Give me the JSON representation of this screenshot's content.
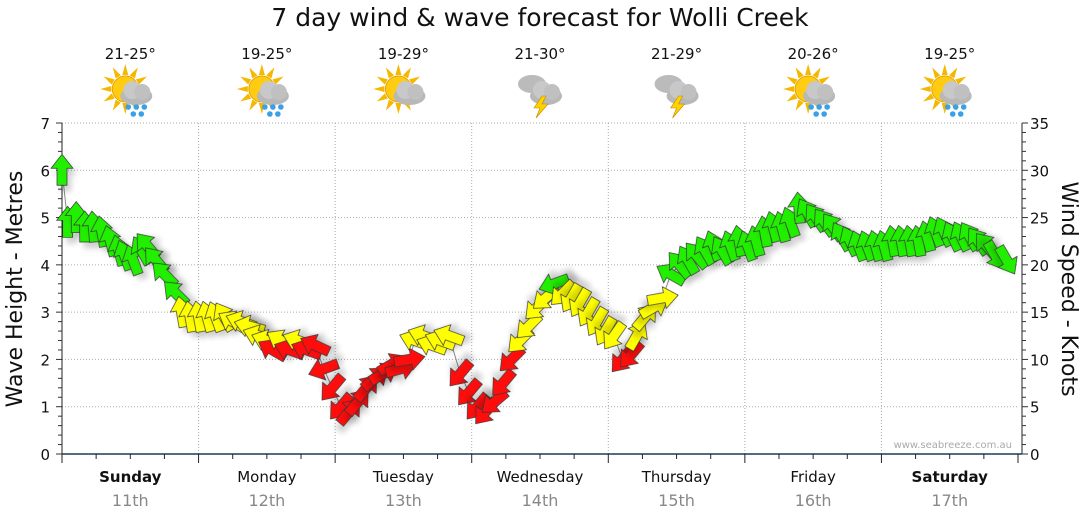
{
  "chart_data": {
    "type": "scatter",
    "title": "7 day wind & wave forecast for Wolli Creek",
    "ylabel": "Wave Height - Metres",
    "y2label": "Wind Speed - Knots",
    "ylim": [
      0,
      7
    ],
    "y2lim": [
      0,
      35
    ],
    "yticks": [
      "0",
      "1",
      "2",
      "3",
      "4",
      "5",
      "6",
      "7"
    ],
    "y2ticks": [
      "0",
      "5",
      "10",
      "15",
      "20",
      "25",
      "30",
      "35"
    ],
    "grid": true,
    "watermark": "www.seabreeze.com.au",
    "days": [
      {
        "day": "Sunday",
        "date": "11th",
        "temp": "21-25°",
        "icon": "sun-cloud-rain-icon",
        "bold": true
      },
      {
        "day": "Monday",
        "date": "12th",
        "temp": "19-25°",
        "icon": "sun-cloud-rain-icon",
        "bold": false
      },
      {
        "day": "Tuesday",
        "date": "13th",
        "temp": "19-29°",
        "icon": "sun-cloud-icon",
        "bold": false
      },
      {
        "day": "Wednesday",
        "date": "14th",
        "temp": "21-30°",
        "icon": "thunderstorm-icon",
        "bold": false
      },
      {
        "day": "Thursday",
        "date": "15th",
        "temp": "21-29°",
        "icon": "thunderstorm-icon",
        "bold": false
      },
      {
        "day": "Friday",
        "date": "16th",
        "temp": "20-26°",
        "icon": "sun-cloud-rain-icon",
        "bold": false
      },
      {
        "day": "Saturday",
        "date": "17th",
        "temp": "19-25°",
        "icon": "sun-cloud-rain-icon",
        "bold": true
      }
    ],
    "colors": {
      "g": "#22ee00",
      "y": "#ffff00",
      "r": "#ff1111"
    },
    "wind_series_fields": [
      "hour",
      "knots",
      "direction_deg",
      "color"
    ],
    "wind": [
      [
        0,
        30,
        0,
        "g"
      ],
      [
        1,
        24.5,
        0,
        "g"
      ],
      [
        2.5,
        25,
        0,
        "g"
      ],
      [
        4,
        24,
        0,
        "g"
      ],
      [
        5.5,
        24,
        355,
        "g"
      ],
      [
        7,
        23.5,
        350,
        "g"
      ],
      [
        8.5,
        22.5,
        345,
        "g"
      ],
      [
        10,
        21.5,
        345,
        "g"
      ],
      [
        11,
        21,
        340,
        "g"
      ],
      [
        12.5,
        20.5,
        340,
        "g"
      ],
      [
        14,
        21.5,
        330,
        "g"
      ],
      [
        15,
        22,
        320,
        "g"
      ],
      [
        16.5,
        20.5,
        320,
        "g"
      ],
      [
        18,
        19,
        315,
        "g"
      ],
      [
        20,
        17,
        315,
        "g"
      ],
      [
        21,
        15,
        350,
        "y"
      ],
      [
        22.5,
        14.5,
        350,
        "y"
      ],
      [
        24,
        14.5,
        350,
        "y"
      ],
      [
        25.5,
        14.5,
        345,
        "y"
      ],
      [
        27,
        14.5,
        340,
        "y"
      ],
      [
        28.5,
        14.5,
        330,
        "y"
      ],
      [
        30,
        14,
        300,
        "y"
      ],
      [
        31.5,
        14,
        290,
        "y"
      ],
      [
        33,
        13.5,
        285,
        "y"
      ],
      [
        34.5,
        12.5,
        290,
        "y"
      ],
      [
        36,
        12,
        290,
        "y"
      ],
      [
        37,
        11,
        300,
        "r"
      ],
      [
        38.5,
        12,
        300,
        "y"
      ],
      [
        40,
        11,
        290,
        "r"
      ],
      [
        41.5,
        12,
        290,
        "y"
      ],
      [
        43,
        11,
        290,
        "r"
      ],
      [
        44.5,
        11.5,
        295,
        "r"
      ],
      [
        46,
        9,
        250,
        "r"
      ],
      [
        47.5,
        7,
        220,
        "r"
      ],
      [
        49,
        5,
        220,
        "r"
      ],
      [
        50.5,
        4.5,
        40,
        "r"
      ],
      [
        52,
        5.5,
        40,
        "r"
      ],
      [
        53.5,
        7,
        40,
        "r"
      ],
      [
        55,
        8,
        50,
        "r"
      ],
      [
        56.5,
        8.5,
        60,
        "r"
      ],
      [
        58,
        9.5,
        60,
        "r"
      ],
      [
        59.5,
        9,
        75,
        "r"
      ],
      [
        61,
        10,
        80,
        "r"
      ],
      [
        62,
        12,
        290,
        "y"
      ],
      [
        63.5,
        12.5,
        290,
        "y"
      ],
      [
        65,
        11.5,
        290,
        "y"
      ],
      [
        66.5,
        12,
        290,
        "y"
      ],
      [
        68,
        12.5,
        290,
        "y"
      ],
      [
        70,
        8.5,
        220,
        "r"
      ],
      [
        71.5,
        6.5,
        220,
        "r"
      ],
      [
        73,
        5,
        220,
        "r"
      ],
      [
        74.5,
        4.5,
        220,
        "r"
      ],
      [
        76,
        5.5,
        230,
        "r"
      ],
      [
        77.5,
        7.5,
        220,
        "r"
      ],
      [
        79,
        10,
        225,
        "r"
      ],
      [
        80.5,
        12,
        225,
        "y"
      ],
      [
        82,
        13.5,
        225,
        "y"
      ],
      [
        83.5,
        15.5,
        225,
        "y"
      ],
      [
        85,
        16.5,
        230,
        "y"
      ],
      [
        86.5,
        18,
        250,
        "g"
      ],
      [
        88,
        17,
        225,
        "y"
      ],
      [
        89.5,
        16.5,
        210,
        "y"
      ],
      [
        91,
        16,
        210,
        "y"
      ],
      [
        92.5,
        15,
        210,
        "y"
      ],
      [
        94,
        14,
        210,
        "y"
      ],
      [
        95.5,
        13,
        210,
        "y"
      ],
      [
        97,
        12.5,
        215,
        "y"
      ],
      [
        98.5,
        10,
        220,
        "r"
      ],
      [
        100,
        10.5,
        220,
        "r"
      ],
      [
        101,
        12.5,
        30,
        "y"
      ],
      [
        102.5,
        14.5,
        40,
        "y"
      ],
      [
        104,
        15.5,
        60,
        "y"
      ],
      [
        105.5,
        16.5,
        80,
        "y"
      ],
      [
        107,
        19,
        300,
        "g"
      ],
      [
        108.5,
        20,
        320,
        "g"
      ],
      [
        110,
        20.5,
        330,
        "g"
      ],
      [
        111.5,
        21,
        320,
        "g"
      ],
      [
        113,
        21.5,
        330,
        "g"
      ],
      [
        114.5,
        22,
        340,
        "g"
      ],
      [
        116,
        21.5,
        330,
        "g"
      ],
      [
        117.5,
        22,
        340,
        "g"
      ],
      [
        119,
        22.5,
        350,
        "g"
      ],
      [
        120.5,
        22,
        340,
        "g"
      ],
      [
        122,
        22.5,
        345,
        "g"
      ],
      [
        123.5,
        23.5,
        350,
        "g"
      ],
      [
        125,
        24,
        345,
        "g"
      ],
      [
        126.5,
        24,
        345,
        "g"
      ],
      [
        128,
        24.5,
        340,
        "g"
      ],
      [
        129.5,
        26,
        355,
        "g"
      ],
      [
        131,
        25.5,
        330,
        "g"
      ],
      [
        132.5,
        25,
        325,
        "g"
      ],
      [
        134,
        24.5,
        325,
        "g"
      ],
      [
        135.5,
        24,
        325,
        "g"
      ],
      [
        137,
        23,
        330,
        "g"
      ],
      [
        138.5,
        22.5,
        335,
        "g"
      ],
      [
        140,
        22,
        340,
        "g"
      ],
      [
        141.5,
        22,
        340,
        "g"
      ],
      [
        143,
        22,
        345,
        "g"
      ],
      [
        144.5,
        22,
        345,
        "g"
      ],
      [
        146,
        22.5,
        350,
        "g"
      ],
      [
        147.5,
        22.5,
        350,
        "g"
      ],
      [
        149,
        22.5,
        350,
        "g"
      ],
      [
        150.5,
        22.5,
        350,
        "g"
      ],
      [
        152,
        23,
        345,
        "g"
      ],
      [
        153.5,
        23.5,
        340,
        "g"
      ],
      [
        155,
        23.5,
        335,
        "g"
      ],
      [
        156.5,
        23,
        335,
        "g"
      ],
      [
        158,
        23,
        335,
        "g"
      ],
      [
        159.5,
        23,
        330,
        "g"
      ],
      [
        161,
        22.5,
        325,
        "g"
      ],
      [
        162.5,
        22,
        320,
        "g"
      ],
      [
        164,
        21,
        150,
        "g"
      ],
      [
        166,
        20.5,
        150,
        "g"
      ]
    ]
  }
}
